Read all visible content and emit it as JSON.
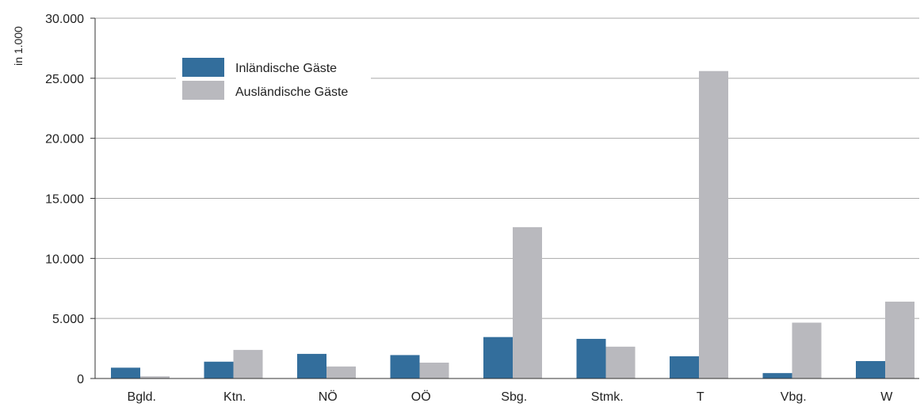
{
  "chart_data": {
    "type": "bar",
    "ylabel": "in 1.000",
    "ylim": [
      0,
      30000
    ],
    "yticks": [
      0,
      5000,
      10000,
      15000,
      20000,
      25000,
      30000
    ],
    "ytick_labels": [
      "0",
      "5.000",
      "10.000",
      "15.000",
      "20.000",
      "25.000",
      "30.000"
    ],
    "categories": [
      "Bgld.",
      "Ktn.",
      "NÖ",
      "OÖ",
      "Sbg.",
      "Stmk.",
      "T",
      "Vbg.",
      "W"
    ],
    "series": [
      {
        "name": "Inländische Gäste",
        "color": "#336e9c",
        "values": [
          900,
          1400,
          2050,
          1950,
          3450,
          3300,
          1850,
          450,
          1450
        ]
      },
      {
        "name": "Ausländische Gäste",
        "color": "#b9b9be",
        "values": [
          180,
          2380,
          1000,
          1320,
          12600,
          2650,
          25600,
          4650,
          6400
        ]
      }
    ],
    "grid": true,
    "legend_position": "top-left"
  }
}
